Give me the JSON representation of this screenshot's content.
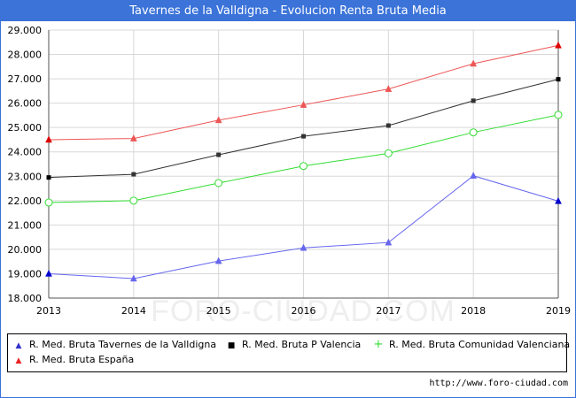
{
  "header": {
    "title": "Tavernes de la Valldigna - Evolucion Renta Bruta Media"
  },
  "watermark": "FORO-CIUDAD.COM",
  "source": "http://www.foro-ciudad.com",
  "chart_data": {
    "type": "line",
    "title": "Tavernes de la Valldigna - Evolucion Renta Bruta Media",
    "x": [
      "2013",
      "2014",
      "2015",
      "2016",
      "2017",
      "2018",
      "2019"
    ],
    "yticks": [
      "18.000",
      "19.000",
      "20.000",
      "21.000",
      "22.000",
      "23.000",
      "24.000",
      "25.000",
      "26.000",
      "27.000",
      "28.000",
      "29.000"
    ],
    "ylim": [
      18000,
      29000
    ],
    "grid": true,
    "legend_position": "bottom",
    "series": [
      {
        "name": "R. Med. Bruta Tavernes de la Valldigna",
        "color": "#6666ee",
        "marker": "triangle",
        "values": [
          19000,
          18800,
          19520,
          20060,
          20280,
          23020,
          21980
        ]
      },
      {
        "name": "R. Med. Bruta P Valencia",
        "color": "#333333",
        "marker": "square",
        "values": [
          22950,
          23080,
          23880,
          24640,
          25080,
          26100,
          26980
        ]
      },
      {
        "name": "R. Med. Bruta Comunidad Valenciana",
        "color": "#33dd33",
        "marker": "circle",
        "values": [
          21920,
          22000,
          22720,
          23420,
          23940,
          24800,
          25520
        ]
      },
      {
        "name": "R. Med. Bruta España",
        "color": "#ee5555",
        "marker": "triangle",
        "values": [
          24500,
          24550,
          25300,
          25930,
          26580,
          27620,
          28370
        ]
      }
    ]
  }
}
